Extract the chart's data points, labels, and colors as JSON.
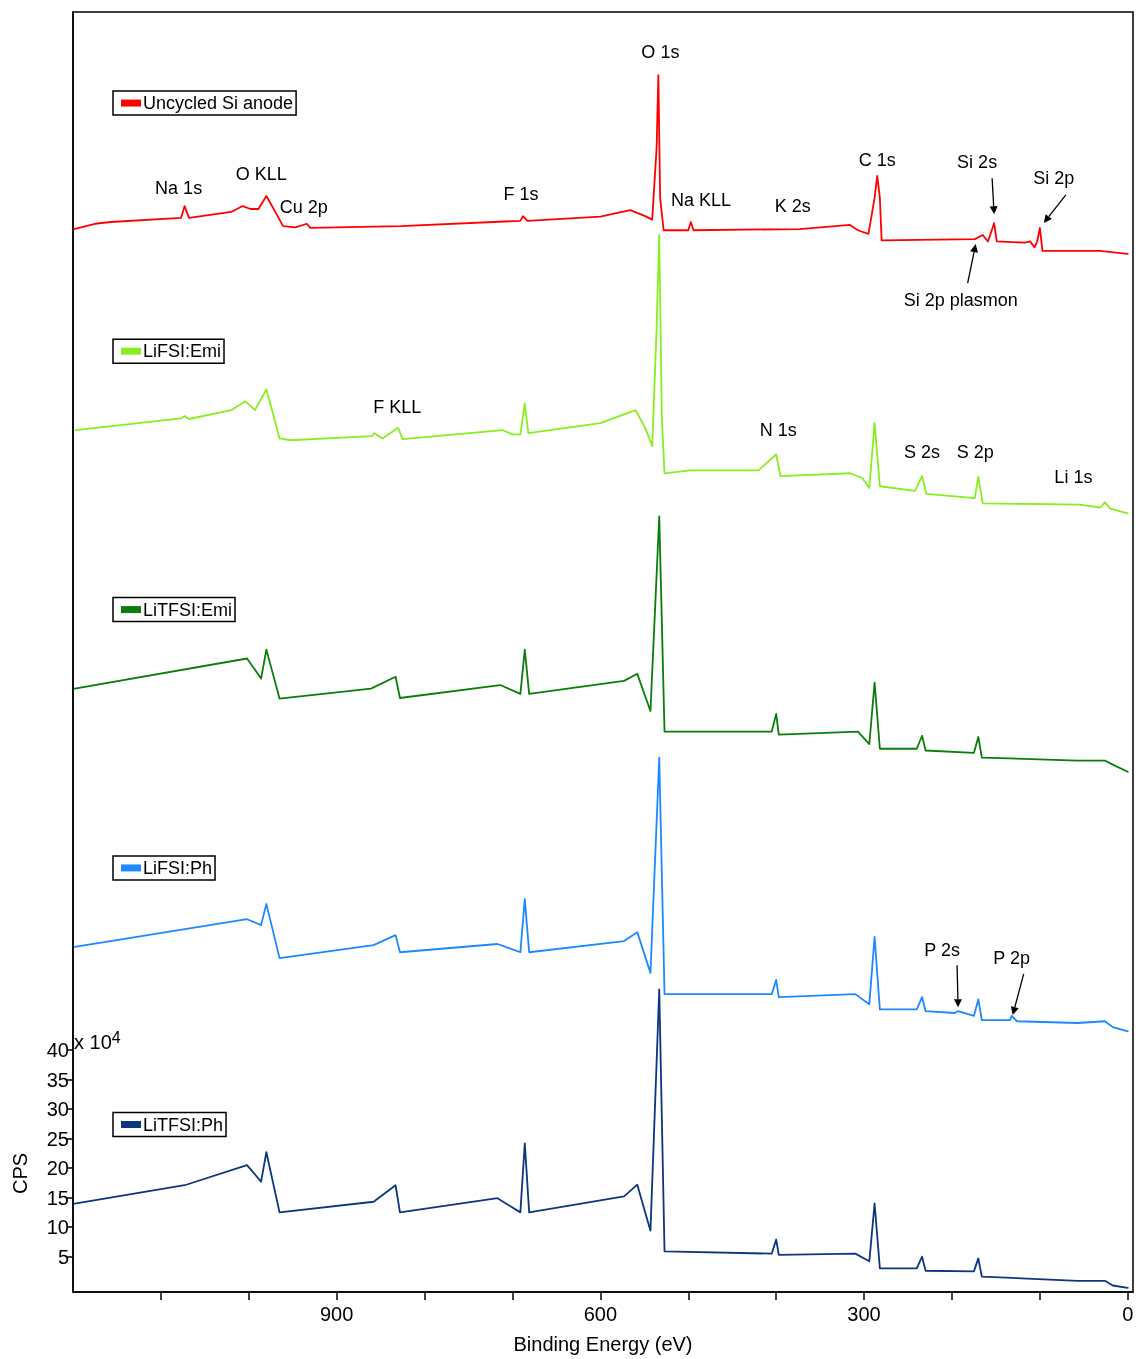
{
  "chart_data": {
    "type": "line",
    "xlabel": "Binding Energy (eV)",
    "ylabel": "CPS",
    "xlim": [
      1200,
      -6
    ],
    "ylim": [
      -1,
      216
    ],
    "xticks": [
      {
        "value": 1100,
        "label": null
      },
      {
        "value": 1000,
        "label": null
      },
      900,
      {
        "value": 800,
        "label": null
      },
      {
        "value": 700,
        "label": null
      },
      600,
      {
        "value": 500,
        "label": null
      },
      {
        "value": 400,
        "label": null
      },
      300,
      {
        "value": 200,
        "label": null
      },
      {
        "value": 100,
        "label": null
      },
      0
    ],
    "yticks": [
      5,
      10,
      15,
      20,
      25,
      30,
      35,
      40
    ],
    "grid": false,
    "legend": "left",
    "marker": "none",
    "line_style": "solid",
    "series": [
      {
        "name": "Uncycled Si anode",
        "color": "#ff0000",
        "x": [
          1199,
          1175,
          1157,
          1077,
          1073,
          1068,
          1020,
          1007,
          998,
          989,
          980,
          969,
          961,
          947,
          934,
          930,
          827,
          691,
          688,
          683,
          600,
          566,
          549,
          541,
          536,
          534,
          532,
          528,
          500,
          497,
          494,
          373,
          316,
          307,
          295,
          288,
          285,
          282,
          280,
          174,
          165,
          159,
          152,
          149,
          117,
          111,
          106,
          103,
          100,
          97,
          32,
          0
        ],
        "values": [
          179.2,
          180.1,
          180.4,
          181.1,
          183.1,
          181.1,
          182.1,
          183.1,
          182.6,
          182.6,
          184.8,
          181.9,
          179.7,
          179.5,
          180.1,
          179.4,
          179.7,
          180.6,
          181.4,
          180.6,
          181.3,
          182.4,
          181.4,
          180.8,
          193.0,
          205.3,
          184.5,
          179.0,
          179.0,
          180.4,
          179.0,
          179.2,
          179.9,
          179.0,
          178.4,
          184.5,
          188.2,
          184.5,
          177.3,
          177.5,
          178.2,
          177.1,
          180.2,
          177.1,
          176.9,
          177.1,
          176.1,
          177.1,
          179.4,
          175.5,
          175.5,
          175.0
        ]
      },
      {
        "name": "LiFSI:Emi",
        "color": "#88ee22",
        "x": [
          1197,
          1077,
          1073,
          1068,
          1020,
          1004,
          993,
          980,
          974,
          965,
          953,
          860,
          857,
          848,
          830,
          825,
          711,
          700,
          691,
          686,
          682,
          600,
          560,
          549,
          541,
          536,
          533,
          530,
          527,
          498,
          420,
          400,
          395,
          316,
          302,
          294,
          288,
          282,
          242,
          234,
          229,
          174,
          170,
          165,
          55,
          31,
          26,
          20,
          0
        ],
        "values": [
          145.1,
          147.1,
          147.5,
          147.0,
          148.5,
          150.0,
          148.5,
          152.0,
          148.8,
          143.7,
          143.4,
          144.1,
          144.6,
          143.7,
          145.5,
          143.6,
          145.1,
          144.4,
          144.4,
          149.6,
          144.6,
          146.3,
          148.5,
          145.5,
          142.4,
          162.4,
          178.2,
          147.1,
          137.8,
          138.3,
          138.3,
          141.0,
          137.3,
          137.8,
          137.0,
          135.3,
          146.3,
          135.6,
          134.8,
          137.3,
          134.3,
          133.6,
          137.2,
          132.7,
          132.5,
          132.0,
          132.9,
          131.8,
          131.0
        ]
      },
      {
        "name": "LiTFSI:Emi",
        "color": "#0a7d0a",
        "x": [
          1198,
          1002,
          986,
          980,
          965,
          861,
          833,
          828,
          714,
          691,
          686,
          681,
          573,
          558,
          543,
          533,
          527,
          405,
          400,
          397,
          307,
          294,
          288,
          282,
          240,
          234,
          230,
          175,
          170,
          166,
          57,
          26,
          17,
          0
        ],
        "values": [
          101.3,
          106.4,
          103.0,
          107.9,
          99.6,
          101.3,
          103.3,
          99.7,
          101.9,
          100.4,
          107.9,
          100.4,
          102.6,
          103.8,
          97.5,
          130.5,
          94.0,
          94.0,
          97.0,
          93.5,
          94.0,
          91.9,
          102.3,
          91.1,
          91.1,
          93.3,
          90.8,
          90.4,
          93.1,
          89.6,
          89.1,
          89.1,
          88.4,
          87.2
        ]
      },
      {
        "name": "LiFSI:Ph",
        "color": "#1e88ff",
        "x": [
          1198,
          1002,
          986,
          980,
          965,
          858,
          833,
          828,
          717,
          691,
          686,
          681,
          573,
          558,
          543,
          533,
          527,
          405,
          400,
          397,
          310,
          294,
          288,
          282,
          240,
          234,
          230,
          197,
          193,
          175,
          170,
          166,
          134,
          132,
          126,
          57,
          26,
          17,
          0
        ],
        "values": [
          57.5,
          62.2,
          61.2,
          64.8,
          55.6,
          57.8,
          59.5,
          56.6,
          58.0,
          56.6,
          65.6,
          56.6,
          58.5,
          60.0,
          53.1,
          89.6,
          49.5,
          49.5,
          51.9,
          49.0,
          49.5,
          47.8,
          59.2,
          46.9,
          46.9,
          49.0,
          46.6,
          46.3,
          46.6,
          45.8,
          48.6,
          45.1,
          45.1,
          45.8,
          44.9,
          44.6,
          44.9,
          43.9,
          43.2
        ]
      },
      {
        "name": "LiTFSI:Ph",
        "color": "#0d3580",
        "x": [
          1198,
          1073,
          1002,
          986,
          980,
          965,
          858,
          833,
          828,
          717,
          691,
          686,
          681,
          573,
          558,
          543,
          533,
          527,
          405,
          400,
          397,
          310,
          294,
          288,
          282,
          240,
          234,
          230,
          175,
          170,
          166,
          57,
          26,
          17,
          0
        ],
        "values": [
          14.0,
          17.1,
          20.5,
          17.7,
          22.7,
          12.5,
          14.3,
          17.1,
          12.5,
          14.9,
          12.5,
          24.2,
          12.5,
          15.2,
          17.2,
          9.4,
          50.3,
          5.9,
          5.5,
          7.9,
          5.3,
          5.5,
          4.2,
          14.0,
          3.0,
          3.0,
          5.0,
          2.6,
          2.5,
          4.7,
          1.6,
          0.9,
          0.9,
          0.1,
          -0.3
        ]
      }
    ],
    "annotations": [
      {
        "text": "O 1s",
        "x": 534,
        "y": 205.3
      },
      {
        "text": "Na 1s",
        "x": 1073,
        "y": 183.1
      },
      {
        "text": "O KLL",
        "x": 980,
        "y": 184.8
      },
      {
        "text": "Cu 2p",
        "x": 934,
        "y": 180.1
      },
      {
        "text": "F 1s",
        "x": 688,
        "y": 181.4
      },
      {
        "text": "Na KLL",
        "x": 497,
        "y": 180.4
      },
      {
        "text": "K 2s",
        "x": 381,
        "y": 179.4
      },
      {
        "text": "C 1s",
        "x": 285,
        "y": 188.2
      },
      {
        "text": "Si 2s",
        "x": 152,
        "y": 180.2
      },
      {
        "text": "Si 2p",
        "x": 100,
        "y": 179.4
      },
      {
        "text": "Si 2p plasmon",
        "x": 173,
        "y": 177.5
      },
      {
        "text": "F KLL",
        "x": 830,
        "y": 145.5
      },
      {
        "text": "N 1s",
        "x": 400,
        "y": 141.0
      },
      {
        "text": "S 2s",
        "x": 234,
        "y": 137.3
      },
      {
        "text": "S 2p",
        "x": 170,
        "y": 137.2
      },
      {
        "text": "Li 1s",
        "x": 55,
        "y": 132.5
      },
      {
        "text": "P 2s",
        "x": 193,
        "y": 46.6
      },
      {
        "text": "P 2p",
        "x": 132,
        "y": 45.8
      },
      "x 10$^{4}$"
    ]
  }
}
